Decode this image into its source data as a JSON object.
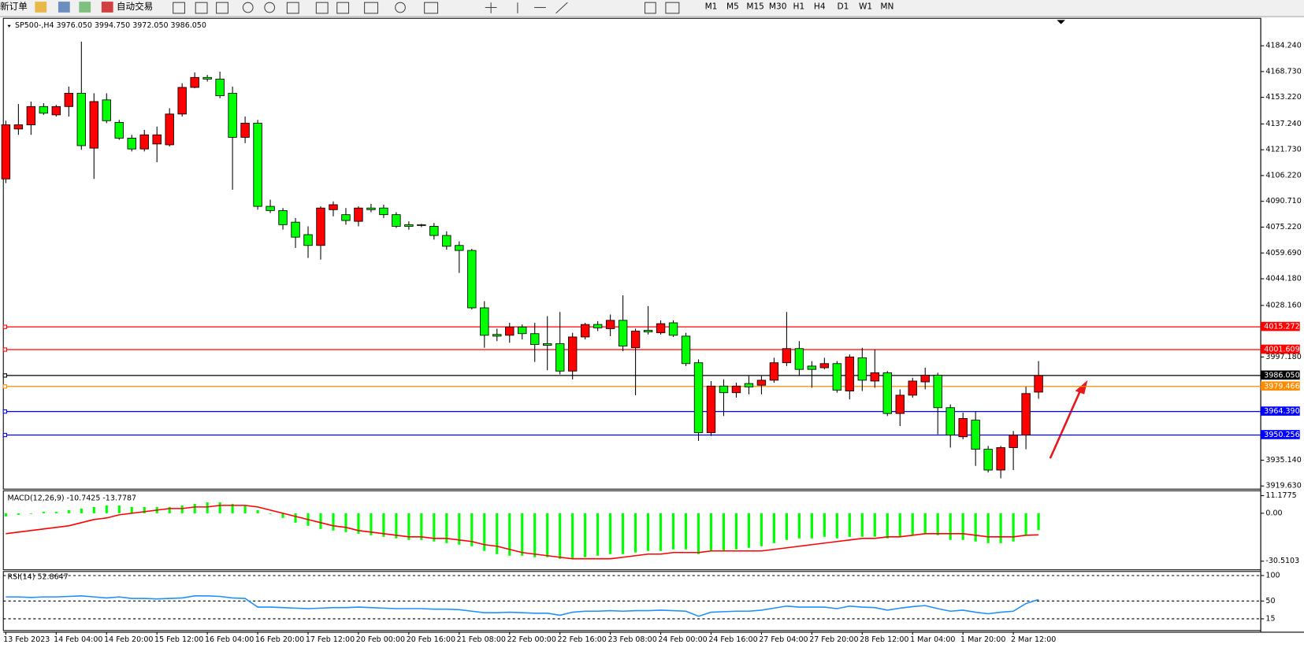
{
  "toolbar": {
    "buttons": [
      "新订单",
      "自动交易"
    ],
    "timeframes": [
      "M1",
      "M5",
      "M15",
      "M30",
      "H1",
      "H4",
      "D1",
      "W1",
      "MN"
    ]
  },
  "chart_data": [
    {
      "type": "candlestick",
      "title": "SP500-,H4 3976.050 3994.750 3972.050 3986.050",
      "categories": [
        "13 Feb 2023",
        null,
        null,
        null,
        "14 Feb 04:00",
        null,
        null,
        null,
        "14 Feb 20:00",
        null,
        null,
        null,
        "15 Feb 12:00",
        null,
        null,
        null,
        "16 Feb 04:00",
        null,
        null,
        null,
        "16 Feb 20:00",
        null,
        null,
        null,
        "17 Feb 12:00",
        null,
        null,
        null,
        "20 Feb 00:00",
        null,
        null,
        null,
        "20 Feb 16:00",
        null,
        null,
        null,
        "21 Feb 08:00",
        null,
        null,
        null,
        "22 Feb 00:00",
        null,
        null,
        null,
        "22 Feb 16:00",
        null,
        null,
        null,
        "23 Feb 08:00",
        null,
        null,
        null,
        "24 Feb 00:00",
        null,
        null,
        null,
        "24 Feb 16:00",
        null,
        null,
        null,
        "27 Feb 04:00",
        null,
        null,
        null,
        "27 Feb 20:00",
        null,
        null,
        null,
        "28 Feb 12:00",
        null,
        null,
        null,
        "1 Mar 04:00",
        null,
        null,
        null,
        "1 Mar 20:00",
        null,
        null,
        null,
        "2 Mar 12:00",
        null,
        null
      ],
      "open": [
        4104.2,
        4134.2,
        4136.7,
        4147.7,
        4142.7,
        4147.7,
        4155.7,
        4122.7,
        4151.7,
        4138.2,
        4128.7,
        4122.2,
        4125.2,
        4124.7,
        4143.2,
        4159.2,
        4165.2,
        4164.2,
        4155.7,
        4129.2,
        4137.7,
        4087.7,
        4085.2,
        4078.2,
        4070.7,
        4064.2,
        4085.7,
        4082.7,
        4078.7,
        4086.7,
        4086.7,
        4082.7,
        4076.7,
        4076.7,
        4075.7,
        4070.2,
        4064.2,
        4061.2,
        4026.7,
        4010.7,
        4010.2,
        4015.2,
        4011.2,
        4005.2,
        4005.2,
        3988.7,
        4009.2,
        4016.7,
        4014.2,
        4019.2,
        4002.7,
        4013.2,
        4011.7,
        4017.7,
        4009.7,
        3993.7,
        3951.7,
        3979.7,
        3975.7,
        3981.2,
        3980.2,
        3983.2,
        3993.7,
        4002.2,
        3991.7,
        3990.7,
        3993.2,
        3976.7,
        3996.7,
        3982.7,
        3987.7,
        3963.2,
        3974.2,
        3982.2,
        3986.2,
        3966.7,
        3949.2,
        3959.2,
        3941.7,
        3929.2,
        3942.7,
        3950.2,
        3976.05
      ],
      "high": [
        4139.2,
        4149.2,
        4150.7,
        4149.7,
        4148.7,
        4159.7,
        4186.7,
        4155.7,
        4155.7,
        4139.7,
        4130.7,
        4133.7,
        4135.7,
        4146.7,
        4161.7,
        4168.2,
        4166.7,
        4168.7,
        4159.7,
        4141.7,
        4139.7,
        4091.7,
        4086.7,
        4080.7,
        4075.7,
        4087.7,
        4090.7,
        4086.7,
        4087.7,
        4089.2,
        4088.7,
        4084.2,
        4078.7,
        4077.2,
        4077.7,
        4072.7,
        4066.7,
        4062.2,
        4030.7,
        4014.2,
        4017.7,
        4016.7,
        4017.7,
        4021.7,
        4024.2,
        4011.7,
        4017.7,
        4018.7,
        4022.7,
        4034.2,
        4014.2,
        4027.7,
        4019.2,
        4019.2,
        4011.7,
        3995.7,
        3982.7,
        3983.7,
        3981.7,
        3985.7,
        3985.7,
        3996.7,
        4024.2,
        4006.7,
        3994.7,
        3996.7,
        3994.7,
        3998.7,
        4002.7,
        4001.7,
        3988.7,
        3977.7,
        3984.7,
        3990.7,
        3987.7,
        3968.7,
        3963.7,
        3964.7,
        3943.7,
        3943.7,
        3952.7,
        3979.2,
        3994.75
      ],
      "low": [
        4101.7,
        4130.7,
        4130.7,
        4142.7,
        4141.7,
        4141.7,
        4121.7,
        4104.2,
        4137.7,
        4127.7,
        4120.7,
        4120.7,
        4114.2,
        4123.7,
        4141.7,
        4158.7,
        4162.7,
        4152.7,
        4097.7,
        4125.7,
        4085.7,
        4083.7,
        4073.7,
        4062.7,
        4056.7,
        4055.7,
        4081.7,
        4076.7,
        4075.7,
        4084.2,
        4080.7,
        4074.7,
        4073.7,
        4075.2,
        4067.7,
        4061.7,
        4047.7,
        4025.7,
        4002.7,
        4006.7,
        4005.7,
        4007.7,
        3994.2,
        3989.2,
        3986.7,
        3983.7,
        4007.7,
        4012.7,
        4009.7,
        4000.7,
        3974.2,
        4010.7,
        4010.7,
        4009.2,
        3991.7,
        3946.7,
        3949.7,
        3961.7,
        3972.7,
        3974.7,
        3974.7,
        3981.7,
        3991.7,
        3985.7,
        3978.7,
        3989.7,
        3975.7,
        3971.7,
        3976.7,
        3978.7,
        3961.7,
        3955.7,
        3972.7,
        3977.7,
        3950.7,
        3942.7,
        3947.7,
        3931.7,
        3927.7,
        3924.2,
        3929.2,
        3941.7,
        3972.05
      ],
      "close": [
        4136.7,
        4136.7,
        4147.7,
        4143.7,
        4147.7,
        4155.7,
        4124.2,
        4150.7,
        4139.2,
        4128.7,
        4122.2,
        4130.7,
        4130.7,
        4143.2,
        4159.2,
        4165.2,
        4164.2,
        4154.2,
        4129.2,
        4137.7,
        4087.7,
        4085.2,
        4076.7,
        4069.2,
        4064.2,
        4086.7,
        4088.7,
        4079.2,
        4086.7,
        4085.7,
        4082.7,
        4075.7,
        4075.7,
        4076.2,
        4070.2,
        4063.7,
        4061.2,
        4026.7,
        4010.2,
        4009.7,
        4015.2,
        4011.2,
        4004.7,
        4004.2,
        3988.7,
        4009.2,
        4016.7,
        4014.7,
        4019.2,
        4003.7,
        4012.7,
        4012.2,
        4017.2,
        4010.2,
        3993.2,
        3951.7,
        3979.7,
        3975.7,
        3979.7,
        3979.2,
        3983.2,
        3993.7,
        4002.2,
        3989.7,
        3989.7,
        3993.2,
        3977.2,
        3997.2,
        3983.2,
        3987.7,
        3963.2,
        3974.2,
        3982.7,
        3986.2,
        3966.7,
        3950.2,
        3960.2,
        3941.7,
        3929.2,
        3942.7,
        3950.2,
        3975.2,
        3986.05
      ],
      "up_color": "#ff0000",
      "down_color": "#00ff00",
      "ylim": [
        3917.74,
        4200.74
      ],
      "yticks": [
        {
          "value": 4184.24,
          "label": "4184.240"
        },
        {
          "value": 4168.73,
          "label": "4168.730"
        },
        {
          "value": 4153.22,
          "label": "4153.220"
        },
        {
          "value": 4137.24,
          "label": "4137.240"
        },
        {
          "value": 4121.73,
          "label": "4121.730"
        },
        {
          "value": 4106.22,
          "label": "4106.220"
        },
        {
          "value": 4090.71,
          "label": "4090.710"
        },
        {
          "value": 4075.22,
          "label": "4075.220"
        },
        {
          "value": 4059.69,
          "label": "4059.690"
        },
        {
          "value": 4044.18,
          "label": "4044.180"
        },
        {
          "value": 4028.16,
          "label": "4028.160"
        },
        {
          "value": 3997.18,
          "label": "3997.180"
        },
        {
          "value": 3935.14,
          "label": "3935.140"
        },
        {
          "value": 3919.63,
          "label": "3919.630"
        }
      ],
      "levels": [
        {
          "value": 4015.272,
          "color": "#ff0000"
        },
        {
          "value": 4001.609,
          "color": "#ff0000"
        },
        {
          "value": 3986.05,
          "label": "3986.050",
          "color": "#000000"
        },
        {
          "value": 3979.466,
          "color": "#ff8c00"
        },
        {
          "value": 3964.39,
          "label": "3964.390",
          "color": "#0000ff"
        },
        {
          "value": 3950.256,
          "color": "#0000ff"
        }
      ]
    },
    {
      "type": "macd",
      "title": "MACD(12,26,9) -10.7425 -13.7787",
      "histogram": {
        "color": "#00ff00",
        "values": [
          -2,
          -1,
          0,
          1,
          1,
          2,
          3,
          4,
          5,
          5,
          4,
          4,
          4,
          4,
          5,
          6,
          7,
          7,
          6,
          5,
          2,
          0,
          -3,
          -6,
          -8,
          -10,
          -11,
          -12,
          -13,
          -14,
          -15,
          -16,
          -17,
          -17,
          -18,
          -19,
          -20,
          -21,
          -24,
          -26,
          -27,
          -27,
          -28,
          -28,
          -29,
          -29,
          -28,
          -27,
          -26,
          -26,
          -25,
          -24,
          -24,
          -23,
          -23,
          -26,
          -24,
          -24,
          -23,
          -22,
          -21,
          -19,
          -17,
          -16,
          -16,
          -15,
          -16,
          -15,
          -15,
          -15,
          -16,
          -15,
          -14,
          -13,
          -14,
          -17,
          -17,
          -18,
          -19,
          -19,
          -18,
          -14,
          -10.7425
        ]
      },
      "signal": {
        "color": "#ff0000",
        "values": [
          -13,
          -12,
          -11,
          -10,
          -9,
          -8,
          -6,
          -4,
          -3,
          -1,
          0,
          1,
          2,
          3,
          3,
          4,
          4,
          5,
          5,
          5,
          4,
          2,
          0,
          -2,
          -4,
          -6,
          -8,
          -9,
          -11,
          -12,
          -13,
          -14,
          -15,
          -15,
          -16,
          -16,
          -17,
          -18,
          -20,
          -21,
          -23,
          -25,
          -26,
          -27,
          -28,
          -29,
          -29,
          -29,
          -29,
          -28,
          -27,
          -26,
          -26,
          -25,
          -25,
          -25,
          -24,
          -24,
          -24,
          -24,
          -24,
          -23,
          -22,
          -21,
          -20,
          -19,
          -18,
          -17,
          -16,
          -16,
          -15,
          -15,
          -14,
          -13,
          -13,
          -13,
          -13,
          -14,
          -15,
          -15,
          -15,
          -14,
          -13.7787
        ]
      },
      "ylim": [
        -36,
        14.3
      ],
      "yticks": [
        11.1775,
        {
          "value": 0,
          "label": "0.00"
        },
        -30.5103
      ]
    },
    {
      "type": "line",
      "title": "RSI(14) 52.8647",
      "color": "#1e90ff",
      "values": [
        58,
        58,
        57,
        58,
        58,
        59,
        60,
        58,
        56,
        58,
        55,
        55,
        54,
        55,
        56,
        60,
        60,
        59,
        56,
        55,
        38,
        38,
        37,
        36,
        35,
        36,
        37,
        37,
        38,
        37,
        36,
        35,
        35,
        35,
        34,
        34,
        33,
        30,
        27,
        27,
        28,
        27,
        26,
        26,
        22,
        28,
        30,
        30,
        31,
        30,
        31,
        31,
        32,
        31,
        30,
        20,
        28,
        29,
        30,
        30,
        32,
        36,
        40,
        38,
        38,
        38,
        35,
        40,
        38,
        37,
        32,
        36,
        39,
        41,
        35,
        30,
        32,
        28,
        25,
        28,
        30,
        45,
        52.8647
      ],
      "ylim": [
        -8,
        108
      ],
      "yticks": [
        100,
        50,
        15
      ],
      "grid": "dashed"
    }
  ]
}
